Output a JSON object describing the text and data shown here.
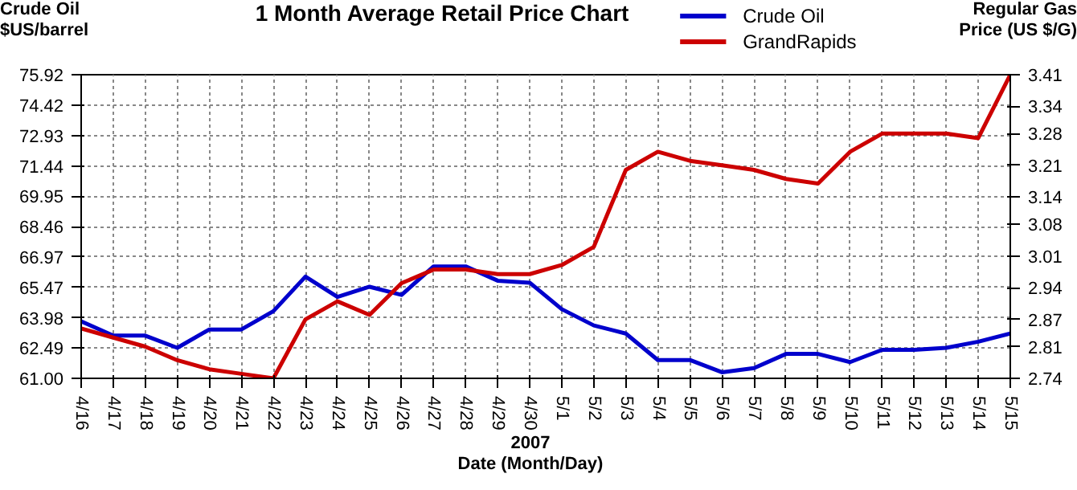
{
  "chart_data": {
    "type": "line",
    "title": "1 Month Average Retail Price Chart",
    "xlabel": "Date (Month/Day)",
    "ylabel": "Crude Oil\n$US/barrel",
    "y2label": "Regular Gas\nPrice (US $/G)",
    "annotations": [
      "2007"
    ],
    "categories": [
      "4/16",
      "4/17",
      "4/18",
      "4/19",
      "4/20",
      "4/21",
      "4/22",
      "4/23",
      "4/24",
      "4/25",
      "4/26",
      "4/27",
      "4/28",
      "4/29",
      "4/30",
      "5/1",
      "5/2",
      "5/3",
      "5/4",
      "5/5",
      "5/6",
      "5/7",
      "5/8",
      "5/9",
      "5/10",
      "5/11",
      "5/12",
      "5/13",
      "5/14",
      "5/15"
    ],
    "series": [
      {
        "name": "Crude Oil",
        "color": "#0000cc",
        "values": [
          63.8,
          63.1,
          63.1,
          62.5,
          63.4,
          63.4,
          64.3,
          66.0,
          65.0,
          65.5,
          65.1,
          66.5,
          66.5,
          65.8,
          65.7,
          64.4,
          63.6,
          63.2,
          61.9,
          61.9,
          61.3,
          61.5,
          62.2,
          62.2,
          61.8,
          62.4,
          62.4,
          62.5,
          62.8,
          63.2
        ]
      },
      {
        "name": "GrandRapids",
        "color": "#cc0000",
        "axis": "y2",
        "values": [
          2.85,
          2.83,
          2.81,
          2.78,
          2.76,
          2.75,
          2.74,
          2.87,
          2.91,
          2.88,
          2.95,
          2.98,
          2.98,
          2.97,
          2.97,
          2.99,
          3.03,
          3.2,
          3.24,
          3.22,
          3.21,
          3.2,
          3.18,
          3.17,
          3.24,
          3.28,
          3.28,
          3.28,
          3.27,
          3.41
        ]
      }
    ],
    "ylim": [
      61.0,
      75.92
    ],
    "yticks": [
      {
        "value": 61,
        "label": "61.00"
      },
      62.49,
      63.98,
      65.47,
      66.97,
      68.46,
      69.95,
      71.44,
      72.93,
      74.42,
      75.92
    ],
    "y2lim": [
      2.74,
      3.41
    ],
    "y2ticks": [
      2.74,
      2.81,
      2.87,
      2.94,
      3.01,
      3.08,
      3.14,
      3.21,
      3.28,
      3.34,
      3.41
    ],
    "grid": true,
    "legend": "top right",
    "line_style": "solid"
  }
}
